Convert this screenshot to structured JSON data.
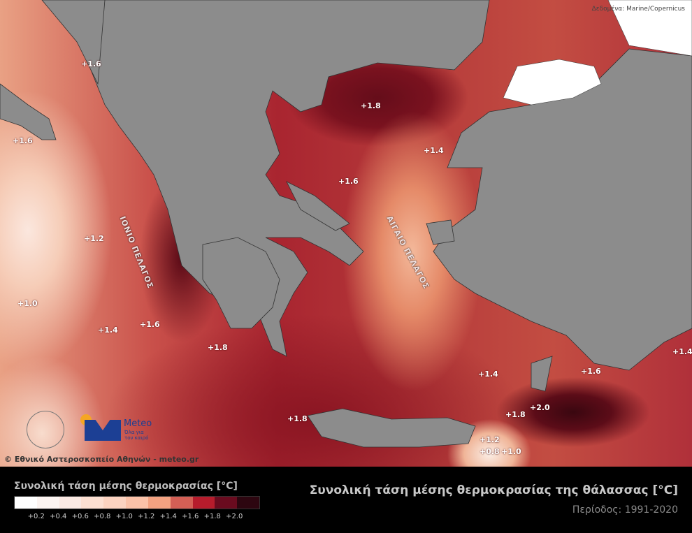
{
  "credit": "Δεδομένα: Marine/Copernicus",
  "copyright": "© Εθνικό Αστεροσκοπείο Αθηνών - meteo.gr",
  "logo": {
    "name": "Meteo",
    "tagline1": "Όλα για",
    "tagline2": "τον καιρό"
  },
  "sea_names": [
    "ΙΟΝΙΟ ΠΕΛΑΓΟΣ",
    "ΑΙΓΑΙΟ ΠΕΛΑΓΟΣ"
  ],
  "contour_labels": [
    "+1.6",
    "+1.6",
    "+1.8",
    "+1.4",
    "+1.6",
    "+1.2",
    "+1.0",
    "+1.4",
    "+1.6",
    "+1.8",
    "+1.4",
    "+1.6",
    "+1.4",
    "+2.0",
    "+1.8",
    "+1.8",
    "+1.2",
    "+0.8",
    "+1.0"
  ],
  "legend": {
    "title": "Συνολική τάση μέσης θερμοκρασίας [°C]",
    "colors": [
      "#ffffff",
      "#fcf4f1",
      "#fbe9e3",
      "#fde0d2",
      "#fcd3c0",
      "#fbc2a8",
      "#f3a281",
      "#d45f55",
      "#b61c2c",
      "#6a0b1f",
      "#2d0610"
    ],
    "ticks": [
      "+0.2",
      "+0.4",
      "+0.6",
      "+0.8",
      "+1.0",
      "+1.2",
      "+1.4",
      "+1.6",
      "+1.8",
      "+2.0"
    ]
  },
  "title": "Συνολική τάση μέσης θερμοκρασίας της θάλασσας [°C]",
  "period": "Περίοδος: 1991-2020"
}
